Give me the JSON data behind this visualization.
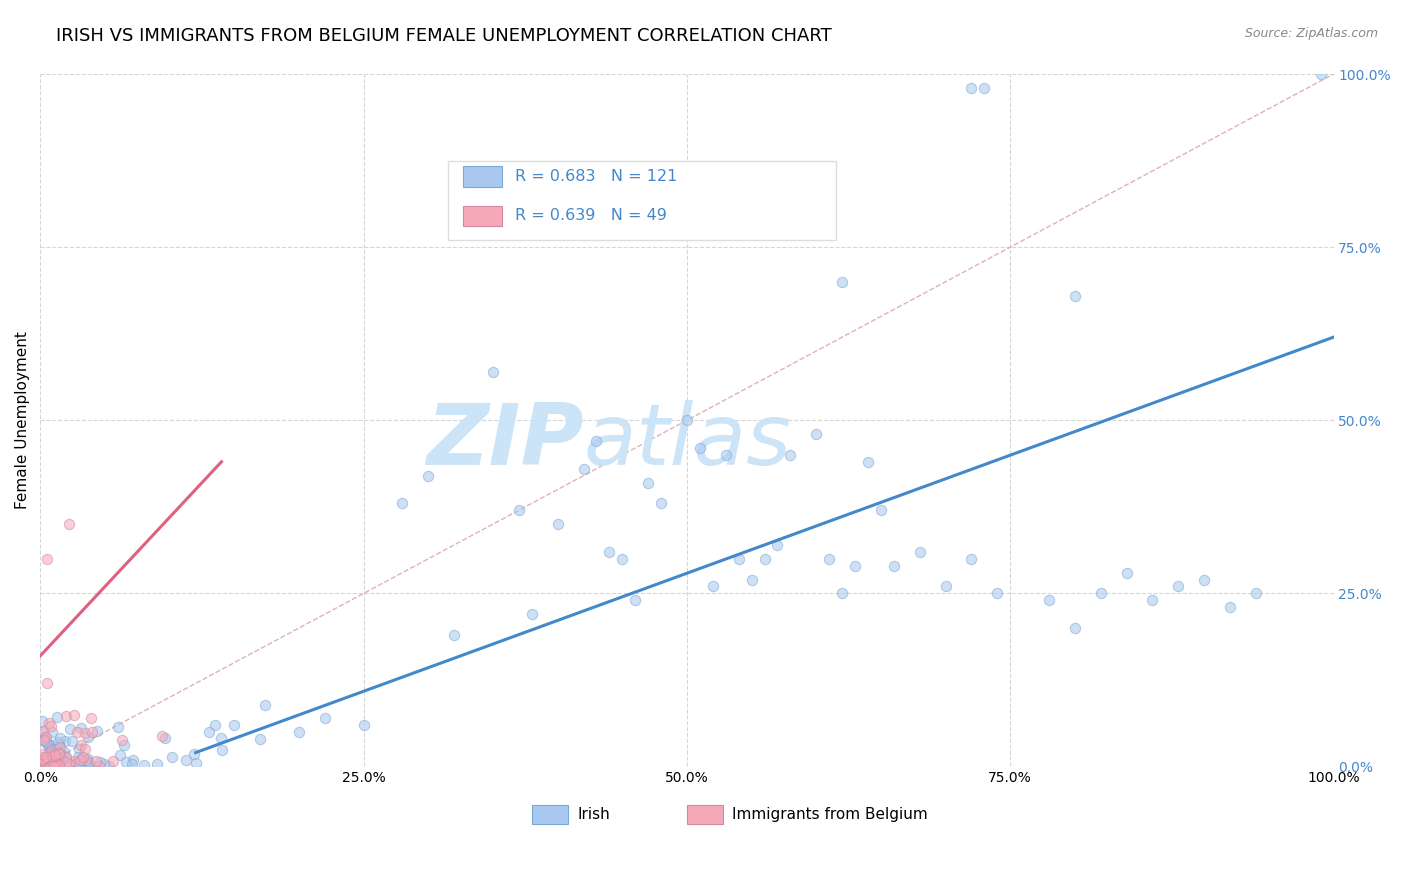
{
  "title": "IRISH VS IMMIGRANTS FROM BELGIUM FEMALE UNEMPLOYMENT CORRELATION CHART",
  "source": "Source: ZipAtlas.com",
  "ylabel": "Female Unemployment",
  "irish_color": "#a8c8f0",
  "irish_edge_color": "#7aaad0",
  "belgium_color": "#f4a8b8",
  "belgium_edge_color": "#d488a0",
  "irish_R": 0.683,
  "irish_N": 121,
  "belgium_R": 0.639,
  "belgium_N": 49,
  "irish_line_color": "#4488cc",
  "belgium_line_color": "#e06080",
  "diagonal_color": "#ddaaaa",
  "background_color": "#ffffff",
  "grid_color": "#cccccc",
  "title_fontsize": 13,
  "axis_label_fontsize": 11,
  "tick_fontsize": 10,
  "watermark_color": "#cce4f7",
  "watermark_fontsize": 62,
  "scatter_size": 55,
  "scatter_alpha": 0.55,
  "right_tick_color": "#4488cc",
  "legend_text_color": "#4488cc",
  "legend_border_color": "#dddddd"
}
